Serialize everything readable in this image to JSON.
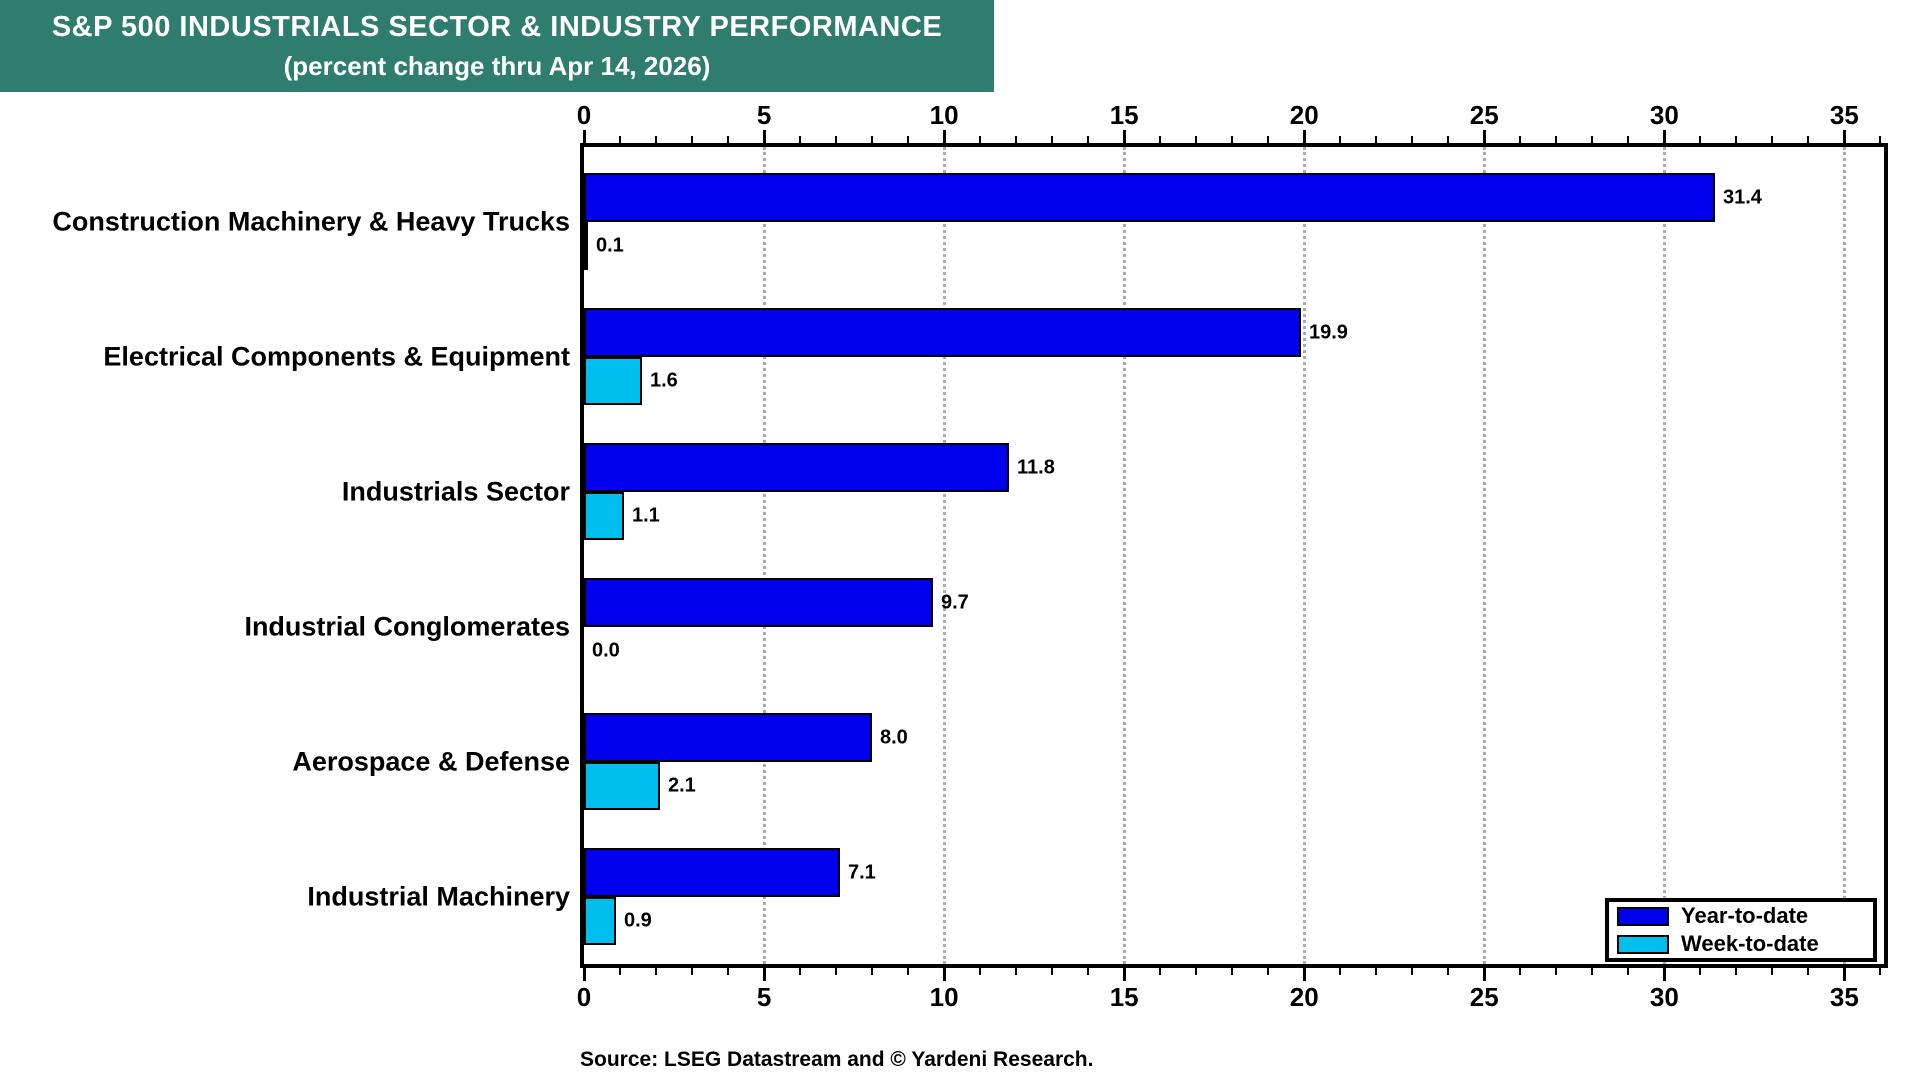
{
  "header": {
    "title_line1": "S&P 500 INDUSTRIALS SECTOR & INDUSTRY PERFORMANCE",
    "title_line2": "(percent change thru Apr 14, 2026)",
    "bg_color": "#2E7D6E"
  },
  "chart_data": {
    "type": "bar",
    "orientation": "horizontal",
    "title": "S&P 500 INDUSTRIALS SECTOR & INDUSTRY PERFORMANCE (percent change thru Apr 14, 2026)",
    "categories": [
      "Construction Machinery & Heavy Trucks",
      "Electrical Components & Equipment",
      "Industrials Sector",
      "Industrial Conglomerates",
      "Aerospace & Defense",
      "Industrial Machinery"
    ],
    "series": [
      {
        "name": "Year-to-date",
        "color": "#0000EE",
        "values": [
          31.4,
          19.9,
          11.8,
          9.7,
          8.0,
          7.1
        ]
      },
      {
        "name": "Week-to-date",
        "color": "#00BFEF",
        "values": [
          0.1,
          1.6,
          1.1,
          0.0,
          2.1,
          0.9
        ]
      }
    ],
    "axis": {
      "min": 0,
      "max": 35,
      "major_tick_step": 5,
      "minor_tick_step": 1,
      "plot_max": 36.1,
      "tick_labels": [
        "0",
        "5",
        "10",
        "15",
        "20",
        "25",
        "30",
        "35"
      ]
    },
    "gridlines": [
      5,
      10,
      15,
      20,
      25,
      30,
      35
    ],
    "grid_color": "#ABABAB",
    "legend_position": "bottom-right",
    "value_label_decimals": 1
  },
  "footer": {
    "source": "Source: LSEG Datastream and © Yardeni Research."
  }
}
